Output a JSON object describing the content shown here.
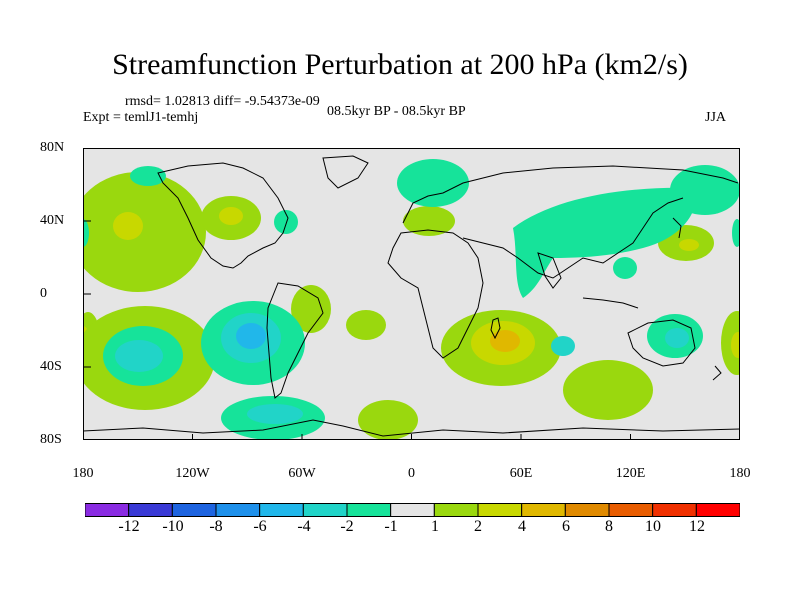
{
  "title": "Streamfunction Perturbation at 200 hPa (km2/s)",
  "stats": "rmsd= 1.02813 diff= -9.54373e-09",
  "experiment": "Expt = temlJ1-temhj",
  "period": "08.5kyr BP - 08.5kyr BP",
  "season": "JJA",
  "map": {
    "projection": "cylindrical equidistant",
    "lat_ticks": [
      "80N",
      "40N",
      "0",
      "40S",
      "80S"
    ],
    "lon_ticks": [
      "180",
      "120W",
      "60W",
      "0",
      "60E",
      "120E",
      "180"
    ],
    "background_color": "#e5e5e5"
  },
  "colorbar": {
    "labels": [
      "-12",
      "-10",
      "-8",
      "-6",
      "-4",
      "-2",
      "-1",
      "1",
      "2",
      "4",
      "6",
      "8",
      "10",
      "12"
    ],
    "colors": [
      "#8a2be2",
      "#3a3ad6",
      "#1e64e0",
      "#1e90ea",
      "#21b7ea",
      "#21d4c8",
      "#16e39a",
      "#e5e5e5",
      "#9ad80e",
      "#c8d800",
      "#e0b800",
      "#e08a00",
      "#e85c00",
      "#f03000",
      "#ff0000"
    ]
  }
}
